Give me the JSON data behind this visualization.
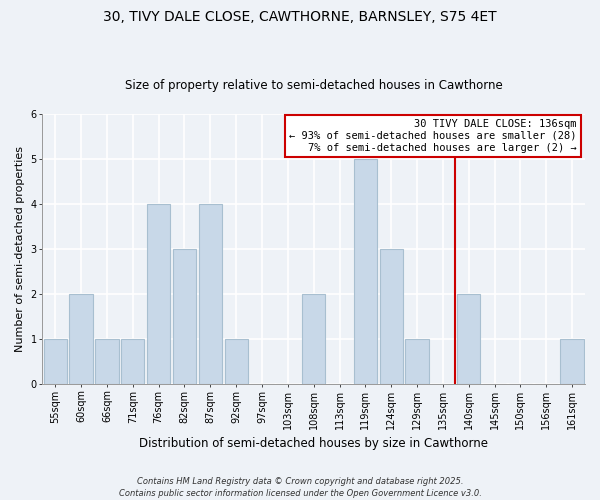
{
  "title": "30, TIVY DALE CLOSE, CAWTHORNE, BARNSLEY, S75 4ET",
  "subtitle": "Size of property relative to semi-detached houses in Cawthorne",
  "xlabel": "Distribution of semi-detached houses by size in Cawthorne",
  "ylabel": "Number of semi-detached properties",
  "bar_labels": [
    "55sqm",
    "60sqm",
    "66sqm",
    "71sqm",
    "76sqm",
    "82sqm",
    "87sqm",
    "92sqm",
    "97sqm",
    "103sqm",
    "108sqm",
    "113sqm",
    "119sqm",
    "124sqm",
    "129sqm",
    "135sqm",
    "140sqm",
    "145sqm",
    "150sqm",
    "156sqm",
    "161sqm"
  ],
  "bar_values": [
    1,
    2,
    1,
    1,
    4,
    3,
    4,
    1,
    0,
    0,
    2,
    0,
    5,
    3,
    1,
    0,
    2,
    0,
    0,
    0,
    1
  ],
  "bar_color": "#c8d8e8",
  "bar_edge_color": "#a8bfd0",
  "reference_line_color": "#cc0000",
  "ylim": [
    0,
    6
  ],
  "yticks": [
    0,
    1,
    2,
    3,
    4,
    5,
    6
  ],
  "annotation_title": "30 TIVY DALE CLOSE: 136sqm",
  "annotation_line1": "← 93% of semi-detached houses are smaller (28)",
  "annotation_line2": "7% of semi-detached houses are larger (2) →",
  "annotation_box_color": "#ffffff",
  "annotation_edge_color": "#cc0000",
  "footer_line1": "Contains HM Land Registry data © Crown copyright and database right 2025.",
  "footer_line2": "Contains public sector information licensed under the Open Government Licence v3.0.",
  "background_color": "#eef2f7",
  "grid_color": "#ffffff",
  "title_fontsize": 10,
  "subtitle_fontsize": 8.5,
  "xlabel_fontsize": 8.5,
  "ylabel_fontsize": 8,
  "tick_fontsize": 7,
  "annotation_fontsize": 7.5,
  "footer_fontsize": 6
}
